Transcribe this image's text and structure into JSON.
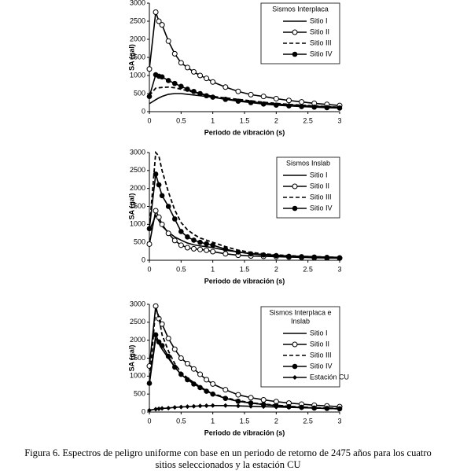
{
  "chart_data": [
    {
      "type": "line",
      "title": "Sismos Interplaca",
      "xlabel": "Periodo de vibración (s)",
      "ylabel": "SA (gal)",
      "x": [
        0,
        0.1,
        0.15,
        0.2,
        0.3,
        0.4,
        0.5,
        0.6,
        0.7,
        0.8,
        0.9,
        1,
        1.2,
        1.4,
        1.6,
        1.8,
        2,
        2.2,
        2.4,
        2.6,
        2.8,
        3
      ],
      "xlim": [
        0,
        3
      ],
      "xticks": [
        0,
        0.5,
        1,
        1.5,
        2,
        2.5,
        3
      ],
      "ylim": [
        0,
        3000
      ],
      "yticks": [
        0,
        500,
        1000,
        1500,
        2000,
        2500,
        3000
      ],
      "grid": false,
      "series": [
        {
          "name": "Sitio I",
          "color": "#000000",
          "marker": "none",
          "dash": "solid",
          "values": [
            220,
            330,
            380,
            420,
            480,
            500,
            500,
            480,
            460,
            440,
            420,
            400,
            350,
            310,
            270,
            240,
            210,
            190,
            170,
            150,
            135,
            120
          ]
        },
        {
          "name": "Sitio II",
          "color": "#000000",
          "marker": "open-circle",
          "dash": "solid",
          "values": [
            1180,
            2750,
            2500,
            2400,
            1950,
            1600,
            1350,
            1220,
            1100,
            1000,
            920,
            820,
            680,
            560,
            470,
            420,
            360,
            310,
            270,
            230,
            200,
            170
          ]
        },
        {
          "name": "Sitio III",
          "color": "#000000",
          "marker": "none",
          "dash": "dashed",
          "values": [
            450,
            650,
            660,
            670,
            680,
            660,
            620,
            580,
            540,
            500,
            460,
            420,
            380,
            340,
            300,
            260,
            230,
            200,
            180,
            160,
            140,
            120
          ]
        },
        {
          "name": "Sitio IV",
          "color": "#000000",
          "marker": "filled-circle",
          "dash": "solid",
          "values": [
            420,
            1020,
            980,
            960,
            860,
            780,
            700,
            620,
            560,
            500,
            440,
            400,
            340,
            290,
            250,
            210,
            180,
            160,
            140,
            125,
            110,
            100
          ]
        }
      ]
    },
    {
      "type": "line",
      "title": "Sismos Inslab",
      "xlabel": "Periodo de vibración (s)",
      "ylabel": "SA (gal)",
      "x": [
        0,
        0.1,
        0.15,
        0.2,
        0.3,
        0.4,
        0.5,
        0.6,
        0.7,
        0.8,
        0.9,
        1,
        1.2,
        1.4,
        1.6,
        1.8,
        2,
        2.2,
        2.4,
        2.6,
        2.8,
        3
      ],
      "xlim": [
        0,
        3
      ],
      "xticks": [
        0,
        0.5,
        1,
        1.5,
        2,
        2.5,
        3
      ],
      "ylim": [
        0,
        3000
      ],
      "yticks": [
        0,
        500,
        1000,
        1500,
        2000,
        2500,
        3000
      ],
      "grid": false,
      "series": [
        {
          "name": "Sitio I",
          "color": "#000000",
          "marker": "none",
          "dash": "solid",
          "values": [
            820,
            1250,
            1100,
            950,
            780,
            650,
            560,
            480,
            430,
            400,
            380,
            350,
            280,
            230,
            190,
            160,
            140,
            120,
            110,
            100,
            90,
            80
          ]
        },
        {
          "name": "Sitio II",
          "color": "#000000",
          "marker": "open-circle",
          "dash": "solid",
          "values": [
            450,
            1380,
            1200,
            1000,
            750,
            550,
            420,
            350,
            320,
            300,
            280,
            240,
            180,
            140,
            120,
            110,
            100,
            90,
            80,
            70,
            65,
            60
          ]
        },
        {
          "name": "Sitio III",
          "color": "#000000",
          "marker": "none",
          "dash": "dashed",
          "values": [
            880,
            3000,
            2900,
            2500,
            1900,
            1400,
            1050,
            850,
            720,
            620,
            560,
            500,
            380,
            280,
            220,
            180,
            150,
            130,
            110,
            100,
            90,
            80
          ]
        },
        {
          "name": "Sitio IV",
          "color": "#000000",
          "marker": "filled-circle",
          "dash": "solid",
          "values": [
            880,
            2400,
            2100,
            1800,
            1500,
            1150,
            800,
            650,
            560,
            500,
            460,
            420,
            310,
            230,
            180,
            150,
            130,
            110,
            100,
            90,
            80,
            70
          ]
        }
      ]
    },
    {
      "type": "line",
      "title": [
        "Sismos Interplaca e",
        "Inslab"
      ],
      "xlabel": "Periodo de vibración (s)",
      "ylabel": "SA (gal)",
      "x": [
        0,
        0.1,
        0.15,
        0.2,
        0.3,
        0.4,
        0.5,
        0.6,
        0.7,
        0.8,
        0.9,
        1,
        1.2,
        1.4,
        1.6,
        1.8,
        2,
        2.2,
        2.4,
        2.6,
        2.8,
        3
      ],
      "xlim": [
        0,
        3
      ],
      "xticks": [
        0,
        0.5,
        1,
        1.5,
        2,
        2.5,
        3
      ],
      "ylim": [
        0,
        3000
      ],
      "yticks": [
        0,
        500,
        1000,
        1500,
        2000,
        2500,
        3000
      ],
      "grid": false,
      "series": [
        {
          "name": "Sitio I",
          "color": "#000000",
          "marker": "none",
          "dash": "solid",
          "values": [
            780,
            2050,
            1900,
            1750,
            1500,
            1250,
            1050,
            900,
            800,
            700,
            600,
            500,
            380,
            300,
            250,
            210,
            180,
            150,
            130,
            110,
            100,
            90
          ]
        },
        {
          "name": "Sitio II",
          "color": "#000000",
          "marker": "open-circle",
          "dash": "solid",
          "values": [
            1280,
            2950,
            2600,
            2450,
            2050,
            1750,
            1500,
            1350,
            1200,
            1050,
            900,
            780,
            620,
            480,
            400,
            340,
            290,
            250,
            220,
            190,
            170,
            150
          ]
        },
        {
          "name": "Sitio III",
          "color": "#000000",
          "marker": "none",
          "dash": "dashed",
          "values": [
            800,
            2900,
            2650,
            2150,
            1700,
            1350,
            1100,
            950,
            820,
            700,
            600,
            520,
            400,
            320,
            260,
            220,
            190,
            160,
            140,
            120,
            110,
            100
          ]
        },
        {
          "name": "Sitio IV",
          "color": "#000000",
          "marker": "filled-circle",
          "dash": "solid",
          "values": [
            800,
            2150,
            1950,
            1850,
            1550,
            1250,
            1050,
            900,
            780,
            680,
            580,
            500,
            380,
            300,
            250,
            210,
            180,
            150,
            130,
            110,
            100,
            90
          ]
        },
        {
          "name": "Estación CU",
          "color": "#000000",
          "marker": "diamond",
          "dash": "solid",
          "values": [
            50,
            80,
            90,
            100,
            110,
            130,
            140,
            150,
            160,
            170,
            175,
            180,
            180,
            170,
            160,
            150,
            140,
            130,
            120,
            110,
            100,
            90
          ]
        }
      ]
    }
  ],
  "caption": [
    "Figura 6.  Espectros de peligro uniforme con base en un periodo de retorno de 2475 años para los cuatro",
    "sitios seleccionados y la estación CU"
  ]
}
